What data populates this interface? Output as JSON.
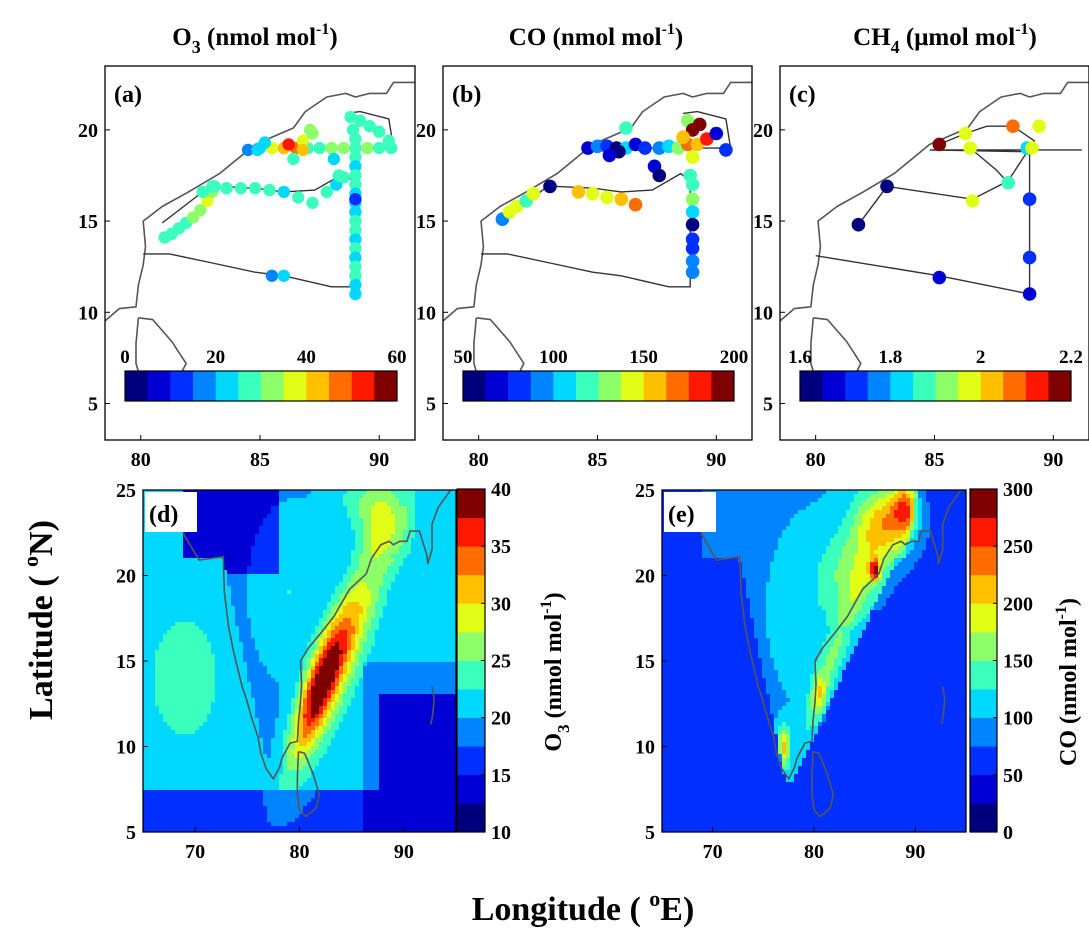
{
  "figure": {
    "ylabel_main": "Latitude ( ",
    "ylabel_main_sup": "o",
    "ylabel_main_end": "N)",
    "xlabel_main": "Longitude ( ",
    "xlabel_main_sup": "o",
    "xlabel_main_end": "E)"
  },
  "colors": {
    "jet12": [
      "#00007f",
      "#0000d4",
      "#0030ff",
      "#0084ff",
      "#00d8ff",
      "#3affbd",
      "#8dff69",
      "#e1ff16",
      "#ffc000",
      "#ff6c00",
      "#ff1800",
      "#7f0000"
    ],
    "o3_map12": [
      "#00007f",
      "#0000d4",
      "#0030ff",
      "#0084ff",
      "#00d8ff",
      "#3affbd",
      "#8dff69",
      "#e1ff16",
      "#ffc000",
      "#ff6c00",
      "#ff1800",
      "#7f0000"
    ],
    "coast": "#555555"
  },
  "chart_data": [
    {
      "id": "a",
      "type": "scatter",
      "panel_label": "(a)",
      "title_main": "O",
      "title_sub": "3",
      "title_rest": " (nmol mol",
      "title_sup": "-1",
      "title_end": ")",
      "xlim": [
        78.5,
        91.5
      ],
      "ylim": [
        3,
        23.5
      ],
      "xticks": [
        80,
        85,
        90
      ],
      "yticks": [
        5,
        10,
        15,
        20
      ],
      "cbar": {
        "ticks": [
          "0",
          "20",
          "40",
          "60"
        ],
        "range": [
          0,
          60
        ]
      },
      "points": [
        [
          81.0,
          14.1,
          27
        ],
        [
          81.3,
          14.3,
          28
        ],
        [
          81.6,
          14.6,
          27
        ],
        [
          81.9,
          14.9,
          29
        ],
        [
          82.2,
          15.2,
          30
        ],
        [
          82.5,
          15.6,
          33
        ],
        [
          82.8,
          16.1,
          36
        ],
        [
          83.0,
          16.6,
          30
        ],
        [
          83.0,
          16.9,
          27
        ],
        [
          83.6,
          16.8,
          26
        ],
        [
          84.2,
          16.8,
          25
        ],
        [
          84.8,
          16.8,
          27
        ],
        [
          85.4,
          16.7,
          26
        ],
        [
          86.0,
          16.6,
          24
        ],
        [
          86.6,
          16.3,
          26
        ],
        [
          87.2,
          16.0,
          27
        ],
        [
          87.8,
          16.6,
          26
        ],
        [
          88.2,
          17.0,
          24
        ],
        [
          88.5,
          17.4,
          25
        ],
        [
          82.6,
          16.6,
          28
        ],
        [
          83.1,
          16.9,
          27
        ],
        [
          84.5,
          18.9,
          15
        ],
        [
          85.0,
          19.0,
          24
        ],
        [
          85.5,
          19.0,
          37
        ],
        [
          86.0,
          19.0,
          42
        ],
        [
          86.5,
          19.0,
          45
        ],
        [
          87.0,
          19.0,
          28
        ],
        [
          87.5,
          19.0,
          27
        ],
        [
          88.0,
          19.0,
          30
        ],
        [
          88.5,
          19.0,
          31
        ],
        [
          89.0,
          19.0,
          28
        ],
        [
          89.5,
          19.0,
          30
        ],
        [
          90.0,
          19.0,
          27
        ],
        [
          90.5,
          19.0,
          29
        ],
        [
          86.2,
          19.2,
          50
        ],
        [
          86.8,
          19.4,
          38
        ],
        [
          87.2,
          19.8,
          30
        ],
        [
          86.4,
          18.4,
          26
        ],
        [
          86.8,
          18.9,
          42
        ],
        [
          88.1,
          18.4,
          24
        ],
        [
          88.3,
          17.5,
          26
        ],
        [
          85.2,
          19.3,
          20
        ],
        [
          87.1,
          20.0,
          32
        ],
        [
          88.8,
          20.7,
          27
        ],
        [
          89.2,
          20.5,
          28
        ],
        [
          89.6,
          20.2,
          29
        ],
        [
          90.0,
          19.9,
          27
        ],
        [
          90.4,
          19.4,
          28
        ],
        [
          88.9,
          20.0,
          26
        ],
        [
          89.0,
          19.5,
          27
        ],
        [
          89.0,
          18.5,
          25
        ],
        [
          89.0,
          18.0,
          24
        ],
        [
          89.0,
          17.5,
          25
        ],
        [
          89.0,
          17.0,
          26
        ],
        [
          89.0,
          16.5,
          24
        ],
        [
          89.0,
          16.0,
          23
        ],
        [
          89.0,
          15.5,
          24
        ],
        [
          89.0,
          15.0,
          26
        ],
        [
          89.0,
          14.5,
          25
        ],
        [
          89.0,
          14.0,
          24
        ],
        [
          89.0,
          13.5,
          25
        ],
        [
          89.0,
          13.0,
          24
        ],
        [
          89.0,
          12.5,
          26
        ],
        [
          89.0,
          12.0,
          25
        ],
        [
          89.0,
          11.5,
          24
        ],
        [
          89.0,
          11.0,
          23
        ],
        [
          89.0,
          16.2,
          10
        ],
        [
          85.5,
          12.0,
          19
        ],
        [
          86.0,
          12.0,
          20
        ],
        [
          84.9,
          18.9,
          22
        ]
      ]
    },
    {
      "id": "b",
      "type": "scatter",
      "panel_label": "(b)",
      "title_main": "CO",
      "title_sub": "",
      "title_rest": "  (nmol mol",
      "title_sup": "-1",
      "title_end": ")",
      "xlim": [
        78.5,
        91.5
      ],
      "ylim": [
        3,
        23.5
      ],
      "xticks": [
        80,
        85,
        90
      ],
      "yticks": [
        5,
        10,
        15,
        20
      ],
      "cbar": {
        "ticks": [
          "50",
          "100",
          "150",
          "200"
        ],
        "range": [
          50,
          200
        ]
      },
      "points": [
        [
          81.0,
          15.1,
          95
        ],
        [
          81.3,
          15.5,
          148
        ],
        [
          81.6,
          15.8,
          145
        ],
        [
          82.0,
          16.1,
          120
        ],
        [
          82.3,
          16.5,
          140
        ],
        [
          83.0,
          16.9,
          55
        ],
        [
          84.2,
          16.6,
          150
        ],
        [
          84.8,
          16.5,
          140
        ],
        [
          85.4,
          16.3,
          140
        ],
        [
          86.0,
          16.2,
          150
        ],
        [
          86.6,
          15.9,
          165
        ],
        [
          87.4,
          18.0,
          70
        ],
        [
          87.6,
          17.5,
          60
        ],
        [
          84.6,
          19.0,
          65
        ],
        [
          85.0,
          19.1,
          95
        ],
        [
          85.4,
          19.1,
          75
        ],
        [
          85.8,
          19.0,
          60
        ],
        [
          86.2,
          19.0,
          110
        ],
        [
          86.6,
          19.2,
          70
        ],
        [
          87.0,
          19.0,
          75
        ],
        [
          87.6,
          19.0,
          95
        ],
        [
          88.0,
          19.1,
          110
        ],
        [
          88.4,
          19.0,
          130
        ],
        [
          88.8,
          19.2,
          165
        ],
        [
          89.2,
          19.2,
          150
        ],
        [
          89.6,
          19.5,
          180
        ],
        [
          90.0,
          19.8,
          70
        ],
        [
          90.4,
          18.9,
          85
        ],
        [
          86.2,
          20.1,
          120
        ],
        [
          88.8,
          20.5,
          130
        ],
        [
          89.0,
          20.0,
          200
        ],
        [
          89.3,
          20.3,
          190
        ],
        [
          88.9,
          17.5,
          120
        ],
        [
          89.0,
          17.0,
          115
        ],
        [
          89.0,
          16.2,
          130
        ],
        [
          89.0,
          15.5,
          110
        ],
        [
          89.0,
          14.8,
          60
        ],
        [
          89.0,
          14.0,
          75
        ],
        [
          89.0,
          13.5,
          85
        ],
        [
          89.0,
          12.8,
          90
        ],
        [
          89.0,
          12.2,
          95
        ],
        [
          89.0,
          18.5,
          140
        ],
        [
          88.6,
          19.6,
          160
        ],
        [
          85.9,
          18.8,
          60
        ],
        [
          85.5,
          18.6,
          68
        ]
      ]
    },
    {
      "id": "c",
      "type": "scatter",
      "panel_label": "(c)",
      "title_main": "CH",
      "title_sub": "4",
      "title_rest": " (μmol mol",
      "title_sup": "-1",
      "title_end": ")",
      "xlim": [
        78.5,
        91.5
      ],
      "ylim": [
        3,
        23.5
      ],
      "xticks": [
        80,
        85,
        90
      ],
      "yticks": [
        5,
        10,
        15,
        20
      ],
      "cbar": {
        "ticks": [
          "1.6",
          "1.8",
          "2",
          "2.2"
        ],
        "range": [
          1.6,
          2.2
        ]
      },
      "points": [
        [
          81.8,
          14.8,
          1.62
        ],
        [
          83.0,
          16.9,
          1.63
        ],
        [
          85.2,
          11.9,
          1.67
        ],
        [
          86.6,
          16.1,
          1.98
        ],
        [
          88.1,
          17.1,
          1.86
        ],
        [
          89.0,
          16.2,
          1.72
        ],
        [
          89.0,
          13.0,
          1.72
        ],
        [
          89.0,
          11.0,
          1.66
        ],
        [
          85.2,
          19.2,
          2.16
        ],
        [
          86.3,
          19.8,
          1.98
        ],
        [
          86.5,
          19.0,
          1.99
        ],
        [
          88.3,
          20.2,
          2.09
        ],
        [
          88.9,
          19.0,
          1.84
        ],
        [
          89.4,
          20.2,
          1.97
        ],
        [
          89.1,
          19.0,
          1.96
        ]
      ]
    },
    {
      "id": "d",
      "type": "heatmap",
      "panel_label": "(d)",
      "xlim": [
        65,
        95
      ],
      "ylim": [
        5,
        25
      ],
      "xticks": [
        70,
        80,
        90
      ],
      "yticks": [
        5,
        10,
        15,
        20,
        25
      ],
      "cbar": {
        "ticks": [
          "10",
          "15",
          "20",
          "25",
          "30",
          "35",
          "40"
        ],
        "range": [
          10,
          40
        ],
        "label_main": "O",
        "label_sub": "3",
        "label_rest": " (nmol mol",
        "label_sup": "-1",
        "label_end": ")"
      }
    },
    {
      "id": "e",
      "type": "heatmap",
      "panel_label": "(e)",
      "xlim": [
        65,
        95
      ],
      "ylim": [
        5,
        25
      ],
      "xticks": [
        70,
        80,
        90
      ],
      "yticks": [
        5,
        10,
        15,
        20,
        25
      ],
      "cbar": {
        "ticks": [
          "0",
          "50",
          "100",
          "150",
          "200",
          "250",
          "300"
        ],
        "range": [
          0,
          300
        ],
        "label_main": "CO (nmol mol",
        "label_sup": "-1",
        "label_end": ")"
      }
    }
  ]
}
